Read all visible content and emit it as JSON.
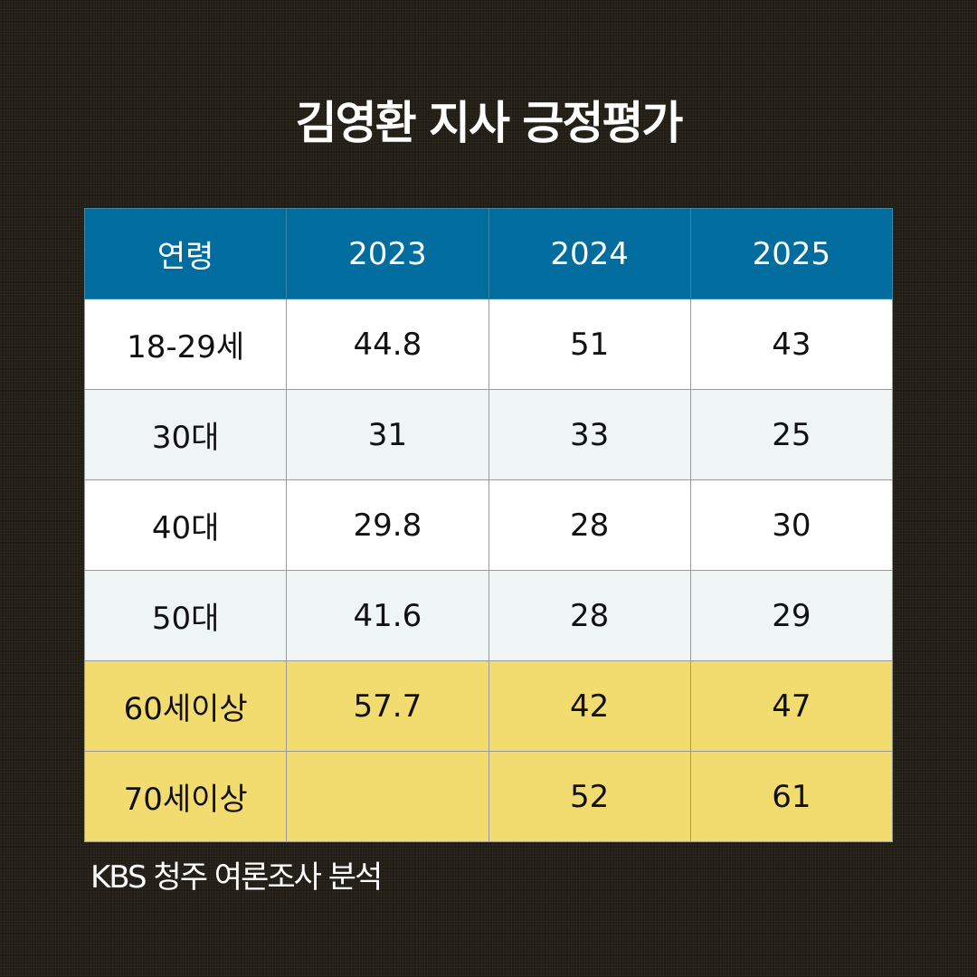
{
  "title": "김영환 지사 긍정평가",
  "source": "KBS 청주 여론조사 분석",
  "colors": {
    "background": "#231f16",
    "header": "#006d9e",
    "row_white": "#ffffff",
    "row_light": "#eff4f5",
    "row_highlight": "#f2db6f"
  },
  "chart_data": {
    "type": "table",
    "title": "김영환 지사 긍정평가",
    "columns": [
      "연령",
      "2023",
      "2024",
      "2025"
    ],
    "rows": [
      {
        "age": "18-29세",
        "v2023": "44.8",
        "v2024": "51",
        "v2025": "43"
      },
      {
        "age": "30대",
        "v2023": "31",
        "v2024": "33",
        "v2025": "25"
      },
      {
        "age": "40대",
        "v2023": "29.8",
        "v2024": "28",
        "v2025": "30"
      },
      {
        "age": "50대",
        "v2023": "41.6",
        "v2024": "28",
        "v2025": "29"
      },
      {
        "age": "60세이상",
        "v2023": "57.7",
        "v2024": "42",
        "v2025": "47"
      },
      {
        "age": "70세이상",
        "v2023": "",
        "v2024": "52",
        "v2025": "61"
      }
    ]
  }
}
